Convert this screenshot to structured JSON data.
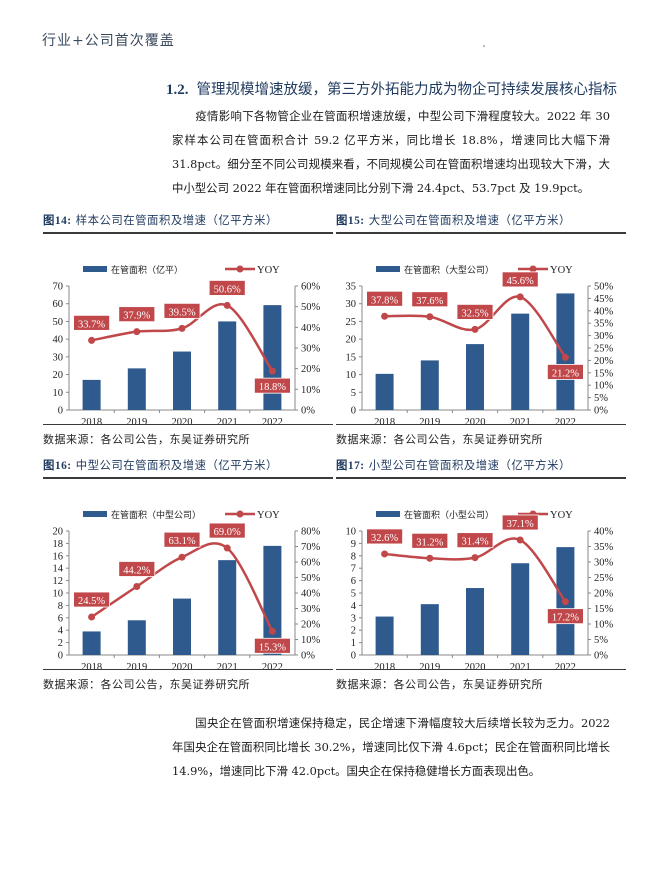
{
  "header": {
    "running_title": "行业+公司首次覆盖"
  },
  "section": {
    "number": "1.2.",
    "title": "管理规模增速放缓，第三方外拓能力成为物企可持续发展核心指标"
  },
  "paragraphs": {
    "p1": "疫情影响下各物管企业在管面积增速放缓，中型公司下滑程度较大。2022 年 30 家样本公司在管面积合计 59.2 亿平方米，同比增长 18.8%，增速同比大幅下滑 31.8pct。细分至不同公司规模来看，不同规模公司在管面积增速均出现较大下滑，大中小型公司 2022 年在管面积增速同比分别下滑 24.4pct、53.7pct 及 19.9pct。",
    "p2": "国央企在管面积增速保持稳定，民企增速下滑幅度较大后续增长较为乏力。2022 年国央企在管面积同比增长 30.2%，增速同比仅下滑 4.6pct；民企在管面积同比增长 14.9%，增速同比下滑 42.0pct。国央企在保持稳健增长方面表现出色。"
  },
  "colors": {
    "bar": "#2f5a8e",
    "line": "#c0474a",
    "label_bg": "#c0474a",
    "title": "#1f3a5f"
  },
  "figures": [
    {
      "id": "fig14",
      "label": "图14:",
      "title": "样本公司在管面积及增速（亿平方米）",
      "source": "数据来源：各公司公告，东吴证券研究所"
    },
    {
      "id": "fig15",
      "label": "图15:",
      "title": "大型公司在管面积及增速（亿平方米）",
      "source": "数据来源：各公司公告，东吴证券研究所"
    },
    {
      "id": "fig16",
      "label": "图16:",
      "title": "中型公司在管面积及增速（亿平方米）",
      "source": "数据来源：各公司公告，东吴证券研究所"
    },
    {
      "id": "fig17",
      "label": "图17:",
      "title": "小型公司在管面积及增速（亿平方米）",
      "source": "数据来源：各公司公告，东吴证券研究所"
    }
  ],
  "chart_data": [
    {
      "type": "bar",
      "title": "样本公司在管面积及增速（亿平方米）",
      "categories": [
        "2018",
        "2019",
        "2020",
        "2021",
        "2022"
      ],
      "series": [
        {
          "name": "在管面积（亿平）",
          "kind": "bar",
          "axis": "left",
          "values": [
            17,
            23.5,
            33,
            50,
            59.2
          ]
        },
        {
          "name": "YOY",
          "kind": "line",
          "axis": "right",
          "values": [
            33.7,
            37.9,
            39.5,
            50.6,
            18.8
          ],
          "labels": [
            "33.7%",
            "37.9%",
            "39.5%",
            "50.6%",
            "18.8%"
          ]
        }
      ],
      "ylim": [
        0,
        70
      ],
      "yticks": [
        0,
        10,
        20,
        30,
        40,
        50,
        60,
        70
      ],
      "y2lim": [
        0,
        60
      ],
      "y2ticks": [
        "0%",
        "10%",
        "20%",
        "30%",
        "40%",
        "50%",
        "60%"
      ],
      "legend_position": "top",
      "grid": false
    },
    {
      "type": "bar",
      "title": "大型公司在管面积及增速（亿平方米）",
      "categories": [
        "2018",
        "2019",
        "2020",
        "2021",
        "2022"
      ],
      "series": [
        {
          "name": "在管面积（大型公司）",
          "kind": "bar",
          "axis": "left",
          "values": [
            10.2,
            14,
            18.6,
            27.2,
            32.9
          ]
        },
        {
          "name": "YOY",
          "kind": "line",
          "axis": "right",
          "values": [
            37.8,
            37.6,
            32.5,
            45.6,
            21.2
          ],
          "labels": [
            "37.8%",
            "37.6%",
            "32.5%",
            "45.6%",
            "21.2%"
          ]
        }
      ],
      "ylim": [
        0,
        35
      ],
      "yticks": [
        0,
        5,
        10,
        15,
        20,
        25,
        30,
        35
      ],
      "y2lim": [
        0,
        50
      ],
      "y2ticks": [
        "0%",
        "5%",
        "10%",
        "15%",
        "20%",
        "25%",
        "30%",
        "35%",
        "40%",
        "45%",
        "50%"
      ],
      "legend_position": "top",
      "grid": false
    },
    {
      "type": "bar",
      "title": "中型公司在管面积及增速（亿平方米）",
      "categories": [
        "2018",
        "2019",
        "2020",
        "2021",
        "2022"
      ],
      "series": [
        {
          "name": "在管面积（中型公司）",
          "kind": "bar",
          "axis": "left",
          "values": [
            3.8,
            5.6,
            9.1,
            15.3,
            17.6
          ]
        },
        {
          "name": "YOY",
          "kind": "line",
          "axis": "right",
          "values": [
            24.5,
            44.2,
            63.1,
            69.0,
            15.3
          ],
          "labels": [
            "24.5%",
            "44.2%",
            "63.1%",
            "69.0%",
            "15.3%"
          ]
        }
      ],
      "ylim": [
        0,
        20
      ],
      "yticks": [
        0,
        2,
        4,
        6,
        8,
        10,
        12,
        14,
        16,
        18,
        20
      ],
      "y2lim": [
        0,
        80
      ],
      "y2ticks": [
        "0%",
        "10%",
        "20%",
        "30%",
        "40%",
        "50%",
        "60%",
        "70%",
        "80%"
      ],
      "legend_position": "top",
      "grid": false
    },
    {
      "type": "bar",
      "title": "小型公司在管面积及增速（亿平方米）",
      "categories": [
        "2018",
        "2019",
        "2020",
        "2021",
        "2022"
      ],
      "series": [
        {
          "name": "在管面积（小型公司）",
          "kind": "bar",
          "axis": "left",
          "values": [
            3.1,
            4.1,
            5.4,
            7.4,
            8.7
          ]
        },
        {
          "name": "YOY",
          "kind": "line",
          "axis": "right",
          "values": [
            32.6,
            31.2,
            31.4,
            37.1,
            17.2
          ],
          "labels": [
            "32.6%",
            "31.2%",
            "31.4%",
            "37.1%",
            "17.2%"
          ]
        }
      ],
      "ylim": [
        0,
        10
      ],
      "yticks": [
        0,
        1,
        2,
        3,
        4,
        5,
        6,
        7,
        8,
        9,
        10
      ],
      "y2lim": [
        0,
        40
      ],
      "y2ticks": [
        "0%",
        "5%",
        "10%",
        "15%",
        "20%",
        "25%",
        "30%",
        "35%",
        "40%"
      ],
      "legend_position": "top",
      "grid": false
    }
  ]
}
